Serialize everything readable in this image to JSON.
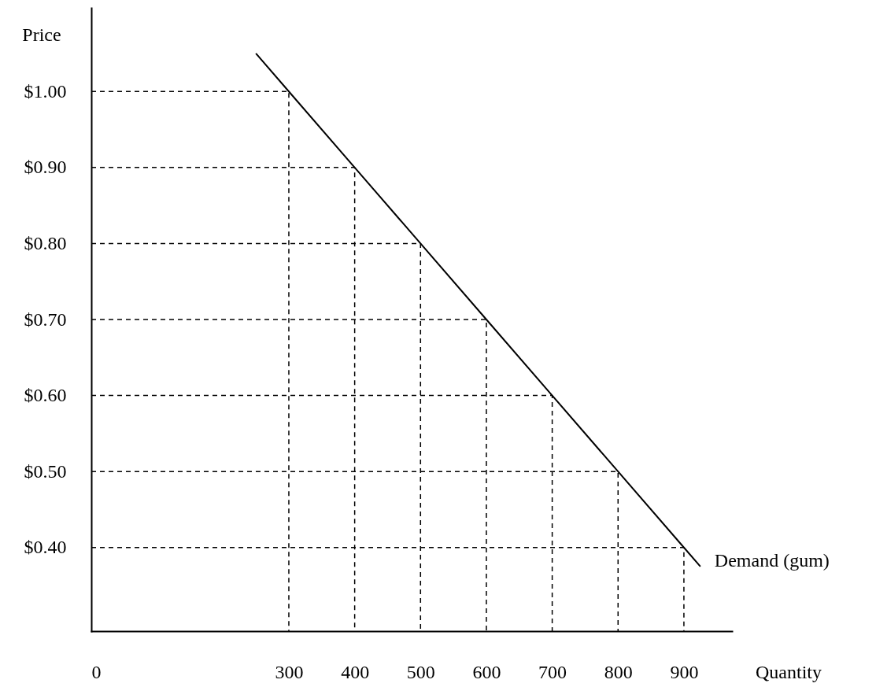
{
  "chart_data": {
    "type": "line",
    "xlabel": "Quantity",
    "ylabel": "Price",
    "xlim": [
      0,
      973
    ],
    "ylim": [
      0.29,
      1.11
    ],
    "xticks": [
      0,
      300,
      400,
      500,
      600,
      700,
      800,
      900
    ],
    "yticks": [
      {
        "value": 0.4,
        "label": "$0.40"
      },
      {
        "value": 0.5,
        "label": "$0.50"
      },
      {
        "value": 0.6,
        "label": "$0.60"
      },
      {
        "value": 0.7,
        "label": "$0.70"
      },
      {
        "value": 0.8,
        "label": "$0.80"
      },
      {
        "value": 0.9,
        "label": "$0.90"
      },
      {
        "value": 1.0,
        "label": "$1.00"
      }
    ],
    "grid": false,
    "legend": false,
    "marker": "none",
    "line_style": "solid",
    "series": [
      {
        "name": "Demand (gum)",
        "color": "#000000",
        "x": [
          250,
          300,
          400,
          500,
          600,
          700,
          800,
          900,
          925
        ],
        "values": [
          1.05,
          1.0,
          0.9,
          0.8,
          0.7,
          0.6,
          0.5,
          0.4,
          0.375
        ]
      },
      {
        "type": "line",
        "line_style": "dashed",
        "color": "#000000",
        "x": [
          0,
          300,
          300
        ],
        "values": [
          1.0,
          1.0,
          0.29
        ]
      },
      {
        "type": "line",
        "line_style": "dashed",
        "color": "#000000",
        "x": [
          0,
          400,
          400
        ],
        "values": [
          0.9,
          0.9,
          0.29
        ]
      },
      {
        "type": "line",
        "line_style": "dashed",
        "color": "#000000",
        "x": [
          0,
          500,
          500
        ],
        "values": [
          0.8,
          0.8,
          0.29
        ]
      },
      {
        "type": "line",
        "line_style": "dashed",
        "color": "#000000",
        "x": [
          0,
          600,
          600
        ],
        "values": [
          0.7,
          0.7,
          0.29
        ]
      },
      {
        "type": "line",
        "line_style": "dashed",
        "color": "#000000",
        "x": [
          0,
          700,
          700
        ],
        "values": [
          0.6,
          0.6,
          0.29
        ]
      },
      {
        "type": "line",
        "line_style": "dashed",
        "color": "#000000",
        "x": [
          0,
          800,
          800
        ],
        "values": [
          0.5,
          0.5,
          0.29
        ]
      },
      {
        "type": "line",
        "line_style": "dashed",
        "color": "#000000",
        "x": [
          0,
          900,
          900
        ],
        "values": [
          0.4,
          0.4,
          0.29
        ]
      }
    ]
  }
}
